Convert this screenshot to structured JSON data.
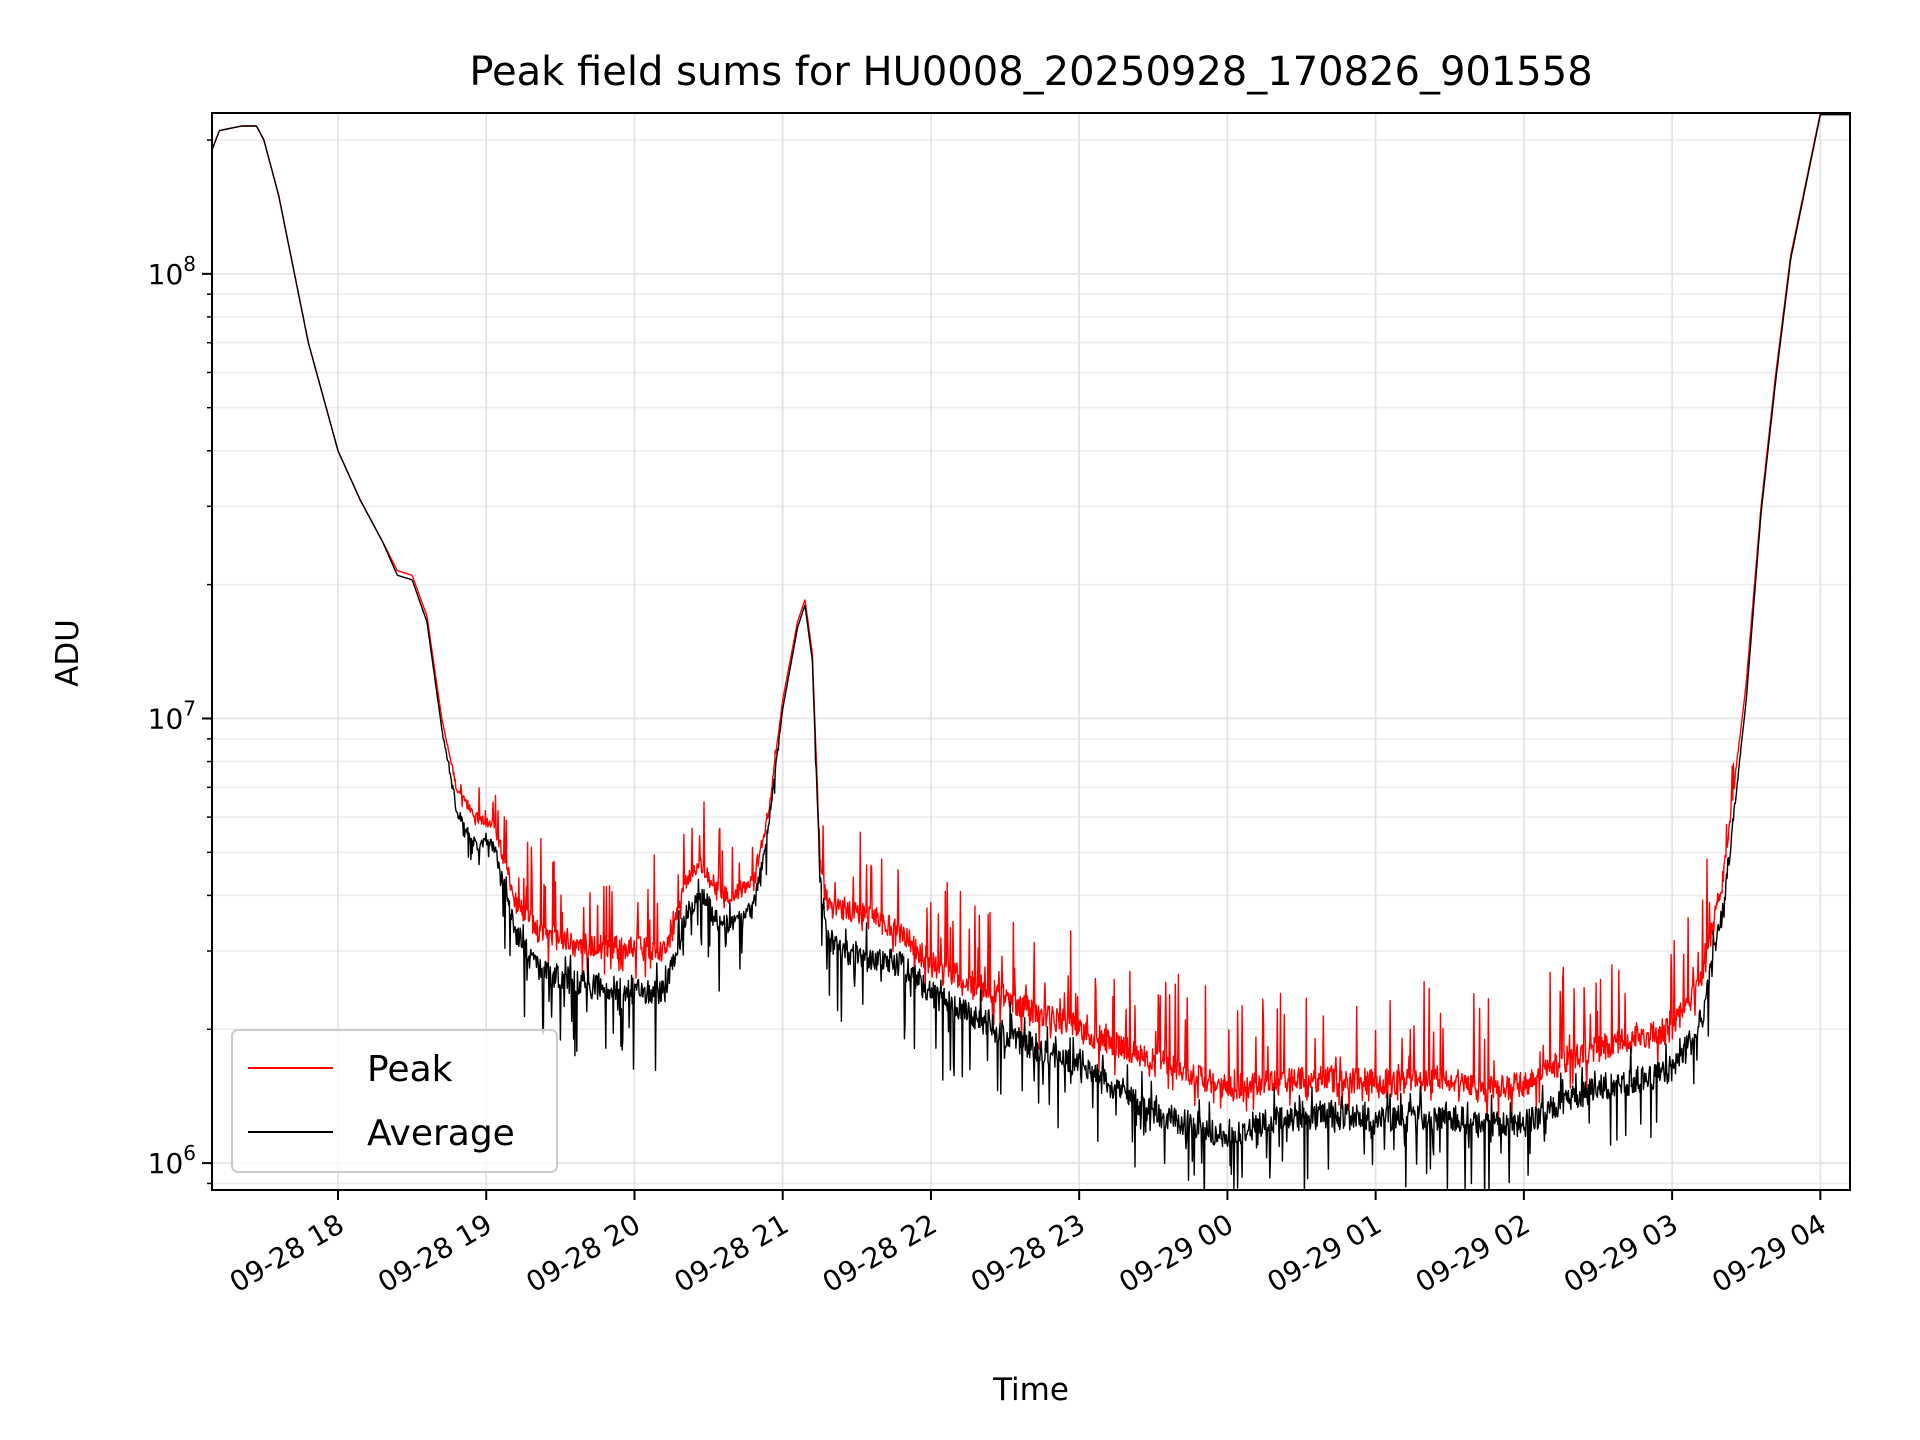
{
  "chart_data": {
    "type": "line",
    "title": "Peak field sums for HU0008_20250928_170826_901558",
    "xlabel": "Time",
    "ylabel": "ADU",
    "yscale": "log",
    "ylim": [
      870000,
      230000000
    ],
    "x_unit": "hours since 09-28 17:00",
    "xlim": [
      0.15,
      11.2
    ],
    "grid": true,
    "legend_location": "lower-left",
    "x_ticks": [
      {
        "value": 1,
        "label": "09-28 18"
      },
      {
        "value": 2,
        "label": "09-28 19"
      },
      {
        "value": 3,
        "label": "09-28 20"
      },
      {
        "value": 4,
        "label": "09-28 21"
      },
      {
        "value": 5,
        "label": "09-28 22"
      },
      {
        "value": 6,
        "label": "09-28 23"
      },
      {
        "value": 7,
        "label": "09-29 00"
      },
      {
        "value": 8,
        "label": "09-29 01"
      },
      {
        "value": 9,
        "label": "09-29 02"
      },
      {
        "value": 10,
        "label": "09-29 03"
      },
      {
        "value": 11,
        "label": "09-29 04"
      }
    ],
    "y_ticks": [
      {
        "value": 1000000,
        "base": "10",
        "exp": "6"
      },
      {
        "value": 10000000,
        "base": "10",
        "exp": "7"
      },
      {
        "value": 100000000,
        "base": "10",
        "exp": "8"
      }
    ],
    "series": [
      {
        "name": "Peak",
        "color": "#ff0000",
        "noise_up": 0.22,
        "noise_down": 0.06,
        "x": [
          0.15,
          0.2,
          0.35,
          0.45,
          0.5,
          0.6,
          0.8,
          1.0,
          1.15,
          1.3,
          1.4,
          1.5,
          1.6,
          1.7,
          1.8,
          1.93,
          2.05,
          2.2,
          2.35,
          2.6,
          2.9,
          3.2,
          3.35,
          3.45,
          3.55,
          3.65,
          3.8,
          3.9,
          4.0,
          4.1,
          4.15,
          4.2,
          4.25,
          4.3,
          4.4,
          4.6,
          4.8,
          5.0,
          5.5,
          6.0,
          6.5,
          7.0,
          7.3,
          7.7,
          8.0,
          8.5,
          8.7,
          9.0,
          9.3,
          9.6,
          10.0,
          10.2,
          10.35,
          10.5,
          10.6,
          10.7,
          10.8,
          11.0,
          11.1,
          11.2
        ],
        "y": [
          190000000,
          210000000,
          215000000,
          215000000,
          200000000,
          150000000,
          70000000,
          40000000,
          31000000,
          25000000,
          21500000,
          21000000,
          17000000,
          10000000,
          7000000,
          6000000,
          5800000,
          3900000,
          3300000,
          3100000,
          3050000,
          3000000,
          4300000,
          4700000,
          4100000,
          4000000,
          4300000,
          6000000,
          11000000,
          16500000,
          18500000,
          14000000,
          5000000,
          3900000,
          3700000,
          3600000,
          3300000,
          2800000,
          2350000,
          2000000,
          1700000,
          1480000,
          1520000,
          1550000,
          1520000,
          1550000,
          1450000,
          1500000,
          1720000,
          1850000,
          2000000,
          2600000,
          4500000,
          12000000,
          30000000,
          60000000,
          110000000,
          230000000,
          230000000,
          230000000
        ]
      },
      {
        "name": "Average",
        "color": "#000000",
        "noise_up": 0.05,
        "noise_down": 0.17,
        "x": [
          0.15,
          0.2,
          0.35,
          0.45,
          0.5,
          0.6,
          0.8,
          1.0,
          1.15,
          1.3,
          1.4,
          1.5,
          1.6,
          1.7,
          1.8,
          1.93,
          2.05,
          2.2,
          2.35,
          2.6,
          2.9,
          3.2,
          3.35,
          3.45,
          3.55,
          3.65,
          3.8,
          3.9,
          4.0,
          4.1,
          4.15,
          4.2,
          4.25,
          4.3,
          4.4,
          4.6,
          4.8,
          5.0,
          5.5,
          6.0,
          6.5,
          7.0,
          7.3,
          7.7,
          8.0,
          8.5,
          8.7,
          9.0,
          9.3,
          9.6,
          10.0,
          10.2,
          10.35,
          10.5,
          10.6,
          10.7,
          10.8,
          11.0,
          11.1,
          11.2
        ],
        "y": [
          190000000,
          210000000,
          215000000,
          215000000,
          200000000,
          150000000,
          70000000,
          40000000,
          31000000,
          25000000,
          21000000,
          20500000,
          16500000,
          9500000,
          6200000,
          5200000,
          5200000,
          3300000,
          2700000,
          2550000,
          2450000,
          2400000,
          3600000,
          4100000,
          3500000,
          3400000,
          3700000,
          5600000,
          10500000,
          16000000,
          18000000,
          13500000,
          4500000,
          3200000,
          3000000,
          2900000,
          2800000,
          2400000,
          1950000,
          1650000,
          1300000,
          1150000,
          1250000,
          1280000,
          1250000,
          1270000,
          1220000,
          1220000,
          1400000,
          1500000,
          1600000,
          2100000,
          3800000,
          11000000,
          29000000,
          58000000,
          108000000,
          228000000,
          228000000,
          228000000
        ]
      }
    ]
  }
}
